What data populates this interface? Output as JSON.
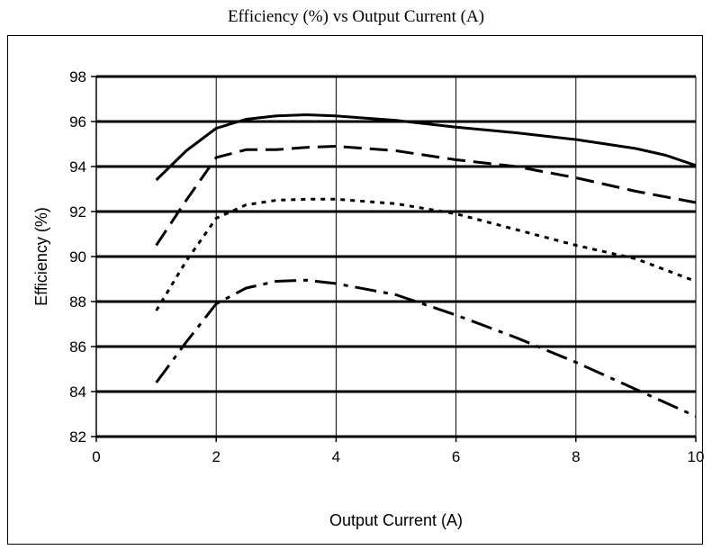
{
  "chart_data": {
    "type": "line",
    "title": "Efficiency (%) vs Output Current (A)",
    "xlabel": "Output Current (A)",
    "ylabel": "Efficiency (%)",
    "xlim": [
      0,
      10
    ],
    "ylim": [
      82,
      98
    ],
    "xticks": [
      0,
      2,
      4,
      6,
      8,
      10
    ],
    "yticks": [
      82,
      84,
      86,
      88,
      90,
      92,
      94,
      96,
      98
    ],
    "grid": true,
    "legend": "none",
    "series": [
      {
        "style": "solid",
        "x": [
          1,
          1.5,
          2,
          2.5,
          3,
          3.5,
          4,
          5,
          6,
          7,
          8,
          8.5,
          9,
          9.5,
          10
        ],
        "y": [
          93.4,
          94.7,
          95.7,
          96.1,
          96.25,
          96.3,
          96.25,
          96.05,
          95.75,
          95.5,
          95.2,
          95.0,
          94.8,
          94.5,
          94.05
        ]
      },
      {
        "style": "dashed",
        "x": [
          1,
          1.5,
          2,
          2.5,
          3,
          3.5,
          4,
          5,
          6,
          7,
          8,
          9,
          10
        ],
        "y": [
          90.5,
          92.5,
          94.4,
          94.75,
          94.75,
          94.85,
          94.9,
          94.7,
          94.3,
          94.0,
          93.5,
          92.9,
          92.4
        ]
      },
      {
        "style": "dotted",
        "x": [
          1,
          1.5,
          2,
          2.5,
          3,
          3.5,
          4,
          5,
          6,
          7,
          8,
          9,
          10
        ],
        "y": [
          87.6,
          89.8,
          91.7,
          92.3,
          92.5,
          92.55,
          92.55,
          92.35,
          91.9,
          91.2,
          90.5,
          89.9,
          88.9
        ]
      },
      {
        "style": "dash-dot",
        "x": [
          1,
          1.5,
          2,
          2.5,
          3,
          3.5,
          4,
          5,
          6,
          7,
          8,
          9,
          10
        ],
        "y": [
          84.4,
          86.2,
          87.9,
          88.6,
          88.9,
          88.95,
          88.8,
          88.3,
          87.4,
          86.4,
          85.3,
          84.1,
          82.9
        ]
      }
    ]
  }
}
